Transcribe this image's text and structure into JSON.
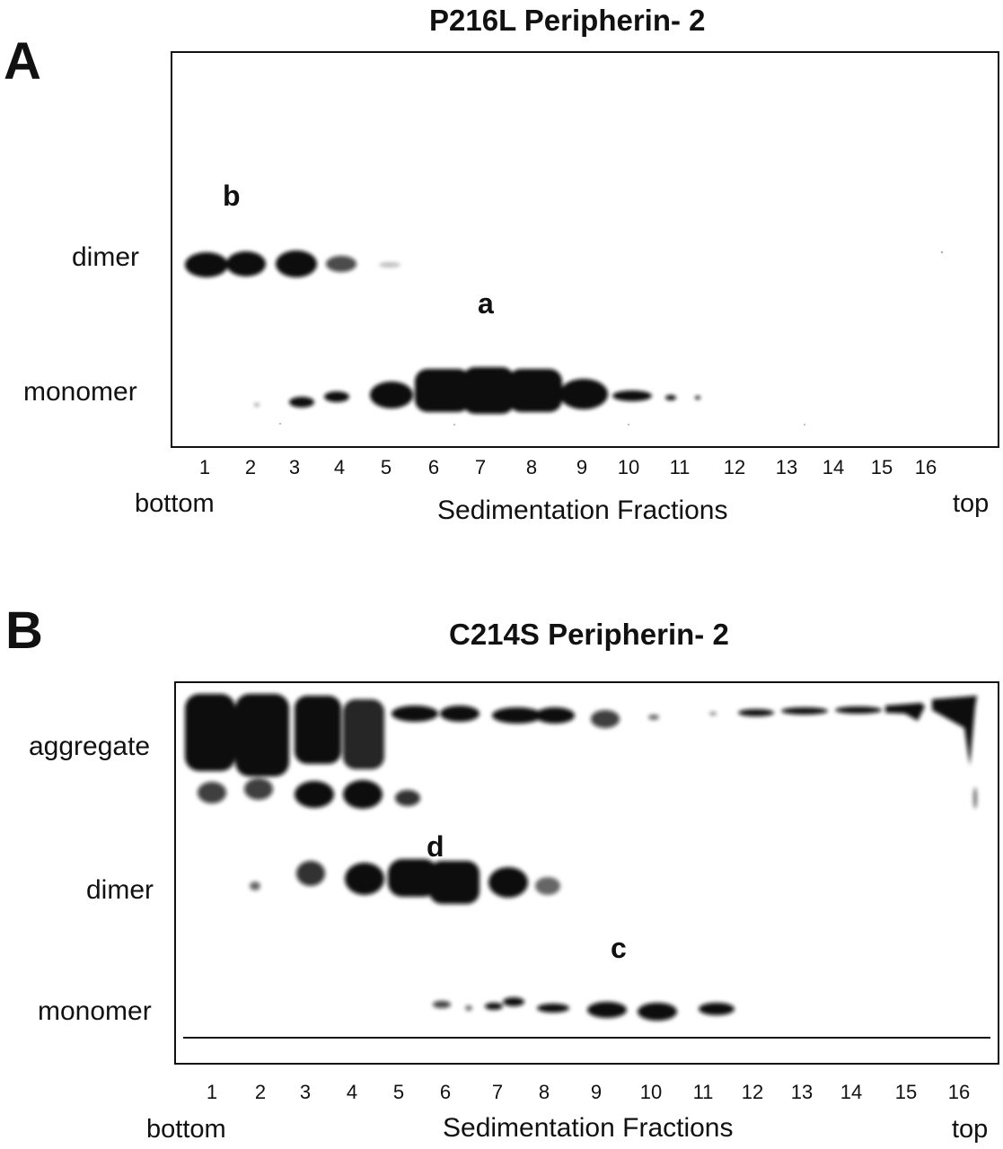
{
  "panel_a": {
    "letter": "A",
    "title": "P216L Peripherin- 2",
    "rows": {
      "dimer": "dimer",
      "monomer": "monomer"
    },
    "bands": {
      "b": "b",
      "a": "a"
    },
    "lanes": [
      "1",
      "2",
      "3",
      "4",
      "5",
      "6",
      "7",
      "8",
      "9",
      "10",
      "11",
      "12",
      "13",
      "14",
      "15",
      "16"
    ],
    "bottom": "bottom",
    "axis": "Sedimentation Fractions",
    "top": "top"
  },
  "panel_b": {
    "letter": "B",
    "title": "C214S Peripherin- 2",
    "rows": {
      "aggregate": "aggregate",
      "dimer": "dimer",
      "monomer": "monomer"
    },
    "bands": {
      "d": "d",
      "c": "c"
    },
    "lanes": [
      "1",
      "2",
      "3",
      "4",
      "5",
      "6",
      "7",
      "8",
      "9",
      "10",
      "11",
      "12",
      "13",
      "14",
      "15",
      "16"
    ],
    "bottom": "bottom",
    "axis": "Sedimentation Fractions",
    "top": "top"
  },
  "colors": {
    "ink": "#111111",
    "band": "#0a0a0a",
    "background": "#ffffff"
  }
}
